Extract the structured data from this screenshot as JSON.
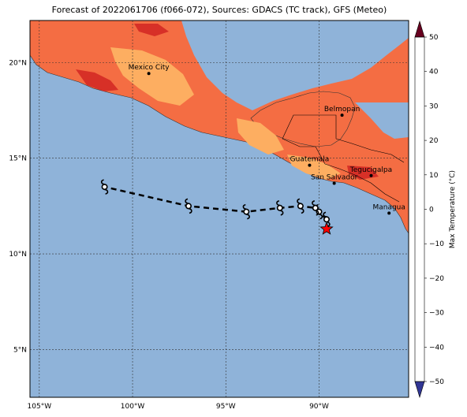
{
  "title": "Forecast of 2022061706 (f066-072), Sources: GDACS (TC track), GFS (Meteo)",
  "map": {
    "lon_range": [
      -105.5,
      -85.2
    ],
    "lat_range": [
      2.5,
      22.2
    ],
    "lon_ticks": [
      -105,
      -100,
      -95,
      -90
    ],
    "lon_tick_labels": [
      "105°W",
      "100°W",
      "95°W",
      "90°W"
    ],
    "lat_ticks": [
      5,
      10,
      15,
      20
    ],
    "lat_tick_labels": [
      "5°N",
      "10°N",
      "15°N",
      "20°N"
    ],
    "colors": {
      "ocean": "#8fb3d9",
      "land_warm": "#f46d43",
      "land_hot": "#d73027",
      "land_mild": "#fdae61",
      "track": "#000000",
      "current_position": "#ff0000"
    }
  },
  "cities": [
    {
      "name": "Mexico City",
      "lon": -99.13,
      "lat": 19.43
    },
    {
      "name": "Belmopan",
      "lon": -88.77,
      "lat": 17.25
    },
    {
      "name": "Guatemala",
      "lon": -90.51,
      "lat": 14.63
    },
    {
      "name": "San Salvador",
      "lon": -89.19,
      "lat": 13.69
    },
    {
      "name": "Tegucigalpa",
      "lon": -87.21,
      "lat": 14.09
    },
    {
      "name": "Managua",
      "lon": -86.25,
      "lat": 12.13
    }
  ],
  "storm_track": {
    "icon": "tropical-cyclone-icon",
    "points": [
      {
        "lon": -89.6,
        "lat": 11.3,
        "current": true
      },
      {
        "lon": -89.6,
        "lat": 11.8
      },
      {
        "lon": -90.0,
        "lat": 12.2
      },
      {
        "lon": -90.2,
        "lat": 12.4
      },
      {
        "lon": -91.0,
        "lat": 12.5
      },
      {
        "lon": -92.1,
        "lat": 12.4
      },
      {
        "lon": -93.9,
        "lat": 12.2
      },
      {
        "lon": -97.0,
        "lat": 12.5
      },
      {
        "lon": -101.5,
        "lat": 13.5
      }
    ]
  },
  "colorbar": {
    "label": "Max Temperature (°C)",
    "ticks": [
      -50,
      -40,
      -30,
      -20,
      -10,
      0,
      10,
      20,
      30,
      40,
      50
    ],
    "tick_labels": [
      "−50",
      "−40",
      "−30",
      "−20",
      "−10",
      "0",
      "10",
      "20",
      "30",
      "40",
      "50"
    ],
    "colors": [
      "#313695",
      "#4575b4",
      "#74add1",
      "#abd9e9",
      "#e0f3f8",
      "#ffffbf",
      "#fee090",
      "#fdae61",
      "#f46d43",
      "#d73027",
      "#a50026",
      "#67001f"
    ]
  }
}
